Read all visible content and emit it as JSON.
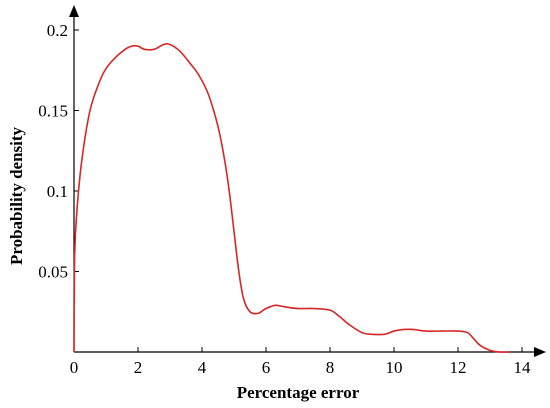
{
  "chart_data": {
    "type": "line",
    "title": "",
    "xlabel": "Percentage error",
    "ylabel": "Probability density",
    "xlim": [
      0,
      14
    ],
    "ylim": [
      0,
      0.2
    ],
    "xticks": [
      0,
      2,
      4,
      6,
      8,
      10,
      12,
      14
    ],
    "xtick_labels": [
      "0",
      "2",
      "4",
      "6",
      "8",
      "10",
      "12",
      "14"
    ],
    "yticks": [
      0.05,
      0.1,
      0.15,
      0.2
    ],
    "ytick_labels": [
      "0.05",
      "0.1",
      "0.15",
      "0.2"
    ],
    "grid": false,
    "series": [
      {
        "color": "#d62728",
        "x": [
          0,
          0.02,
          0.1,
          0.25,
          0.5,
          0.8,
          1.0,
          1.3,
          1.6,
          1.8,
          2.0,
          2.2,
          2.5,
          2.8,
          3.0,
          3.3,
          3.6,
          3.9,
          4.2,
          4.5,
          4.7,
          4.85,
          5.0,
          5.15,
          5.3,
          5.5,
          5.75,
          6.0,
          6.3,
          6.6,
          7.0,
          7.5,
          8.0,
          8.3,
          8.6,
          9.0,
          9.3,
          9.7,
          10.0,
          10.3,
          10.6,
          11.0,
          11.5,
          12.0,
          12.3,
          12.5,
          12.7,
          13.0,
          13.3,
          13.6
        ],
        "y": [
          0,
          0.06,
          0.09,
          0.12,
          0.15,
          0.168,
          0.176,
          0.183,
          0.188,
          0.19,
          0.19,
          0.188,
          0.188,
          0.191,
          0.191,
          0.187,
          0.18,
          0.172,
          0.16,
          0.14,
          0.12,
          0.1,
          0.075,
          0.05,
          0.033,
          0.025,
          0.024,
          0.027,
          0.029,
          0.028,
          0.027,
          0.027,
          0.026,
          0.022,
          0.017,
          0.012,
          0.011,
          0.011,
          0.013,
          0.014,
          0.014,
          0.013,
          0.013,
          0.013,
          0.012,
          0.008,
          0.004,
          0.001,
          0.0,
          0.0
        ]
      }
    ]
  }
}
